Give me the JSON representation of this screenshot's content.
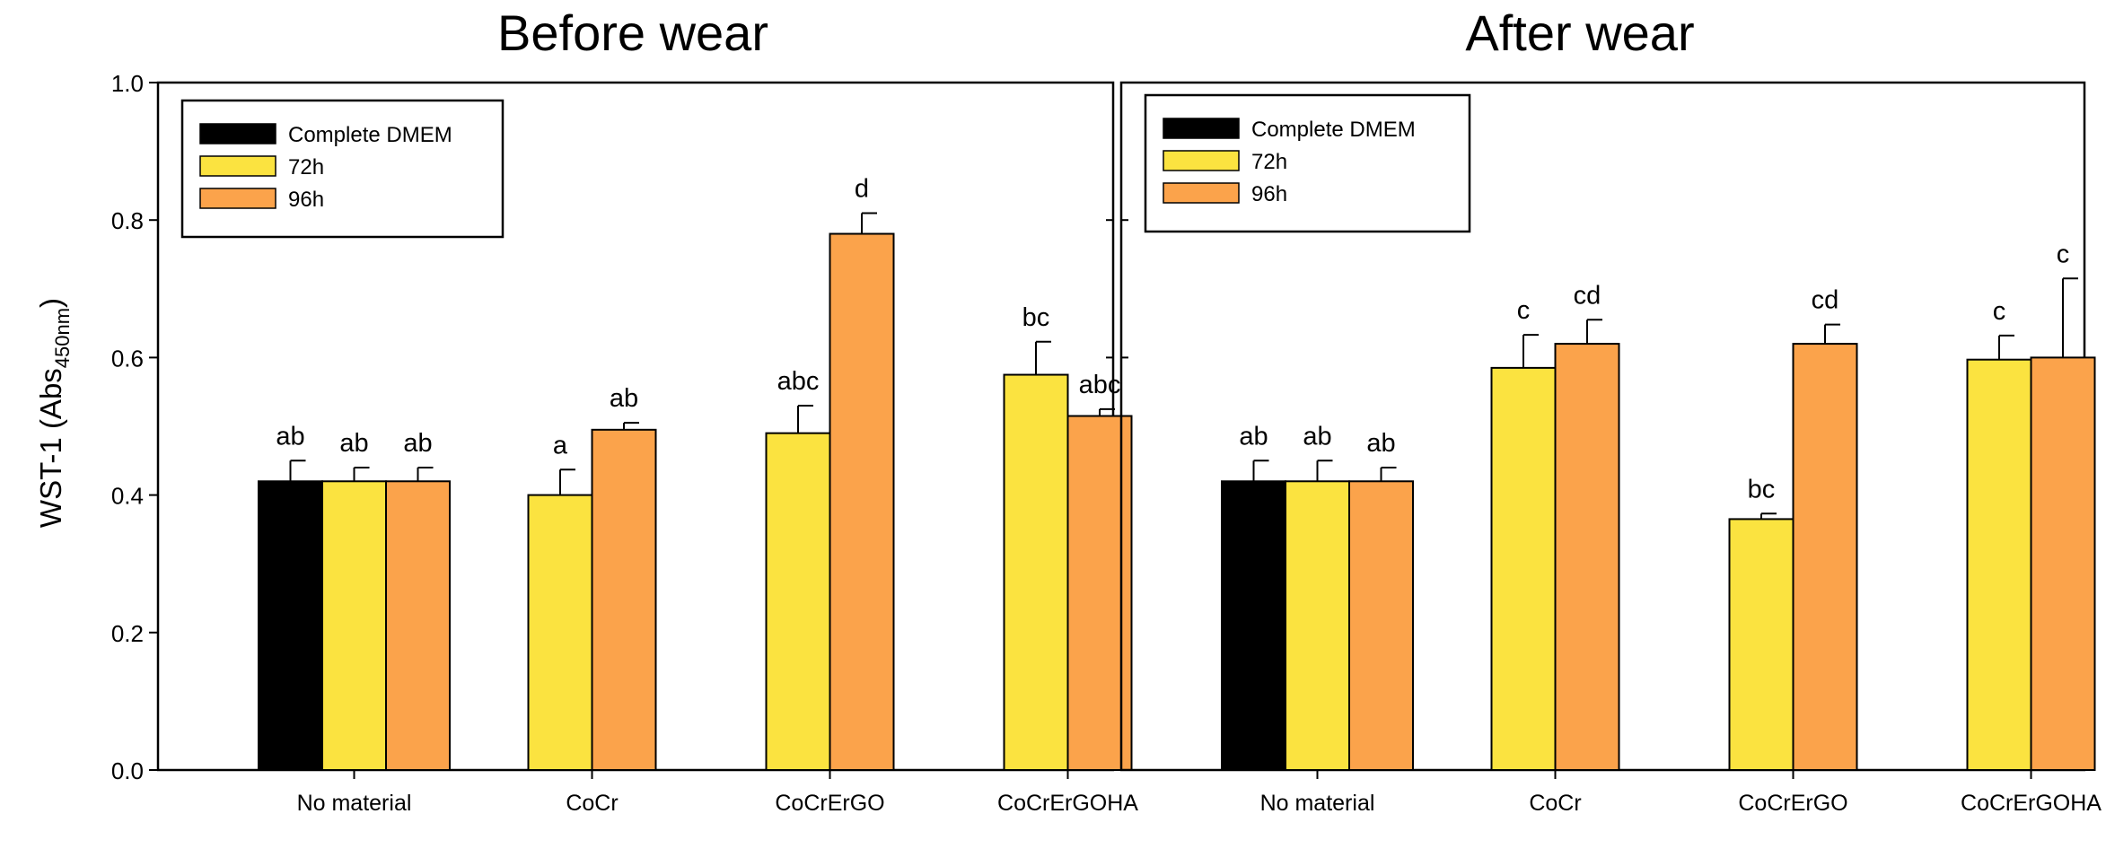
{
  "chart_data": {
    "type": "bar",
    "ylabel_main": "WST-1 (Abs",
    "ylabel_sub": "450nm",
    "ylabel_close": ")",
    "yticks": [
      "0.0",
      "0.2",
      "0.4",
      "0.6",
      "0.8",
      "1.0"
    ],
    "ylim": [
      0,
      1
    ],
    "categories": [
      "No material",
      "CoCr",
      "CoCrErGO",
      "CoCrErGOHA"
    ],
    "legend": [
      {
        "label": "Complete DMEM",
        "color": "#000000"
      },
      {
        "label": "72h",
        "color": "#FBE340"
      },
      {
        "label": "96h",
        "color": "#FBA34B"
      }
    ],
    "panels": [
      {
        "title": "Before wear",
        "bars": [
          {
            "category": "No material",
            "series": "Complete DMEM",
            "value": 0.42,
            "error": 0.03,
            "label": "ab"
          },
          {
            "category": "No material",
            "series": "72h",
            "value": 0.42,
            "error": 0.02,
            "label": "ab"
          },
          {
            "category": "No material",
            "series": "96h",
            "value": 0.42,
            "error": 0.02,
            "label": "ab"
          },
          {
            "category": "CoCr",
            "series": "72h",
            "value": 0.4,
            "error": 0.037,
            "label": "a"
          },
          {
            "category": "CoCr",
            "series": "96h",
            "value": 0.495,
            "error": 0.01,
            "label": "ab"
          },
          {
            "category": "CoCrErGO",
            "series": "72h",
            "value": 0.49,
            "error": 0.04,
            "label": "abc"
          },
          {
            "category": "CoCrErGO",
            "series": "96h",
            "value": 0.78,
            "error": 0.03,
            "label": "d"
          },
          {
            "category": "CoCrErGOHA",
            "series": "72h",
            "value": 0.575,
            "error": 0.048,
            "label": "bc"
          },
          {
            "category": "CoCrErGOHA",
            "series": "96h",
            "value": 0.515,
            "error": 0.01,
            "label": "abc"
          }
        ]
      },
      {
        "title": "After wear",
        "bars": [
          {
            "category": "No material",
            "series": "Complete DMEM",
            "value": 0.42,
            "error": 0.03,
            "label": "ab"
          },
          {
            "category": "No material",
            "series": "72h",
            "value": 0.42,
            "error": 0.03,
            "label": "ab"
          },
          {
            "category": "No material",
            "series": "96h",
            "value": 0.42,
            "error": 0.02,
            "label": "ab"
          },
          {
            "category": "CoCr",
            "series": "72h",
            "value": 0.585,
            "error": 0.048,
            "label": "c"
          },
          {
            "category": "CoCr",
            "series": "96h",
            "value": 0.62,
            "error": 0.035,
            "label": "cd"
          },
          {
            "category": "CoCrErGO",
            "series": "72h",
            "value": 0.365,
            "error": 0.008,
            "label": "bc"
          },
          {
            "category": "CoCrErGO",
            "series": "96h",
            "value": 0.62,
            "error": 0.028,
            "label": "cd"
          },
          {
            "category": "CoCrErGOHA",
            "series": "72h",
            "value": 0.597,
            "error": 0.035,
            "label": "c"
          },
          {
            "category": "CoCrErGOHA",
            "series": "96h",
            "value": 0.6,
            "error": 0.115,
            "label": "c"
          }
        ]
      }
    ]
  }
}
